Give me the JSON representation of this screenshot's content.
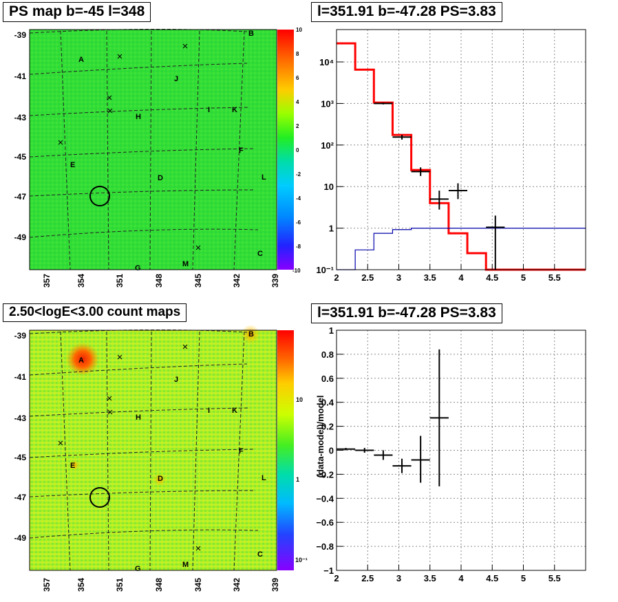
{
  "panels": {
    "ps_map": {
      "title": "PS map b=-45 l=348",
      "y_ticks": [
        "-39",
        "-41",
        "-43",
        "-45",
        "-47",
        "-49"
      ],
      "x_ticks": [
        "357",
        "354",
        "351",
        "348",
        "345",
        "342",
        "339"
      ],
      "colorbar_ticks": [
        "10",
        "8",
        "6",
        "4",
        "2",
        "0",
        "-2",
        "-4",
        "-6",
        "-8",
        "-10"
      ],
      "sources": [
        "A",
        "B",
        "C",
        "D",
        "E",
        "F",
        "G",
        "H",
        "I",
        "J",
        "K",
        "L",
        "M"
      ]
    },
    "count_map": {
      "title": "2.50<logE<3.00 count maps",
      "y_ticks": [
        "-39",
        "-41",
        "-43",
        "-45",
        "-47",
        "-49"
      ],
      "x_ticks": [
        "357",
        "354",
        "351",
        "348",
        "345",
        "342",
        "339"
      ],
      "colorbar_ticks": [
        "10",
        "1",
        "10⁻¹"
      ],
      "sources": [
        "A",
        "B",
        "C",
        "D",
        "E",
        "F",
        "G",
        "H",
        "I",
        "J",
        "K",
        "L",
        "M"
      ]
    },
    "spectrum": {
      "title": "l=351.91 b=-47.28 PS=3.83"
    },
    "residual": {
      "title": "l=351.91 b=-47.28 PS=3.83"
    }
  },
  "chart_data": [
    {
      "type": "line",
      "panel": "spectrum",
      "title": "l=351.91 b=-47.28 PS=3.83",
      "log_y": true,
      "grid": true,
      "xlim": [
        2,
        6
      ],
      "ylim": [
        0.1,
        60000
      ],
      "x_ticks": [
        2,
        2.5,
        3,
        3.5,
        4,
        4.5,
        5,
        5.5
      ],
      "x_tick_labels": [
        "2",
        "2.5",
        "3",
        "3.5",
        "4",
        "4.5",
        "5",
        "5.5"
      ],
      "y_tick_labels": [
        "10⁻¹",
        "1",
        "10",
        "10²",
        "10³",
        "10⁴"
      ],
      "series": [
        {
          "color": "#ff0000",
          "style": "step",
          "edges": [
            2.0,
            2.3,
            2.6,
            2.9,
            3.2,
            3.5,
            3.8,
            4.1,
            4.4,
            6.0
          ],
          "values": [
            28000,
            6500,
            1050,
            175,
            25,
            4,
            0.75,
            0.25,
            0.1
          ]
        },
        {
          "color": "#0000aa",
          "style": "step",
          "edges": [
            2.0,
            2.3,
            2.6,
            2.9,
            3.2,
            3.5,
            6.0
          ],
          "values": [
            0.1,
            0.3,
            0.75,
            0.92,
            1.0,
            1.0
          ]
        },
        {
          "color": "#000000",
          "style": "errorbar",
          "points": [
            {
              "x": 2.75,
              "xerr": 0.15,
              "y": 1000,
              "ylo": 950,
              "yhi": 1050
            },
            {
              "x": 3.05,
              "xerr": 0.15,
              "y": 155,
              "ylo": 135,
              "yhi": 175
            },
            {
              "x": 3.35,
              "xerr": 0.15,
              "y": 23,
              "ylo": 18,
              "yhi": 29
            },
            {
              "x": 3.65,
              "xerr": 0.15,
              "y": 5,
              "ylo": 2.8,
              "yhi": 8
            },
            {
              "x": 3.95,
              "xerr": 0.15,
              "y": 8,
              "ylo": 5,
              "yhi": 12
            },
            {
              "x": 4.55,
              "xerr": 0.15,
              "y": 1.05,
              "ylo": 0.1,
              "yhi": 2.0
            }
          ]
        }
      ]
    },
    {
      "type": "scatter",
      "panel": "residual",
      "title": "l=351.91 b=-47.28 PS=3.83",
      "ylabel": "(data-model)/model",
      "grid": true,
      "xlim": [
        2,
        6
      ],
      "ylim": [
        -1,
        1
      ],
      "x_ticks": [
        2,
        2.5,
        3,
        3.5,
        4,
        4.5,
        5,
        5.5
      ],
      "x_tick_labels": [
        "2",
        "2.5",
        "3",
        "3.5",
        "4",
        "4.5",
        "5",
        "5.5"
      ],
      "y_ticks": [
        1,
        0.8,
        0.6,
        0.4,
        0.2,
        0,
        -0.2,
        -0.4,
        -0.6,
        -0.8,
        -1
      ],
      "y_tick_labels": [
        "1",
        "0.8",
        "0.6",
        "0.4",
        "0.2",
        "0",
        "−0.2",
        "−0.4",
        "−0.6",
        "−0.8",
        "−1"
      ],
      "series": [
        {
          "color": "#000000",
          "style": "errorbar",
          "points": [
            {
              "x": 2.15,
              "xerr": 0.15,
              "y": 0.01,
              "ylo": 0.0,
              "yhi": 0.02
            },
            {
              "x": 2.45,
              "xerr": 0.15,
              "y": 0.0,
              "ylo": -0.02,
              "yhi": 0.02
            },
            {
              "x": 2.75,
              "xerr": 0.15,
              "y": -0.04,
              "ylo": -0.08,
              "yhi": 0.0
            },
            {
              "x": 3.05,
              "xerr": 0.15,
              "y": -0.13,
              "ylo": -0.19,
              "yhi": -0.07
            },
            {
              "x": 3.35,
              "xerr": 0.15,
              "y": -0.08,
              "ylo": -0.27,
              "yhi": 0.12
            },
            {
              "x": 3.65,
              "xerr": 0.15,
              "y": 0.27,
              "ylo": -0.3,
              "yhi": 0.84
            }
          ]
        }
      ]
    }
  ]
}
